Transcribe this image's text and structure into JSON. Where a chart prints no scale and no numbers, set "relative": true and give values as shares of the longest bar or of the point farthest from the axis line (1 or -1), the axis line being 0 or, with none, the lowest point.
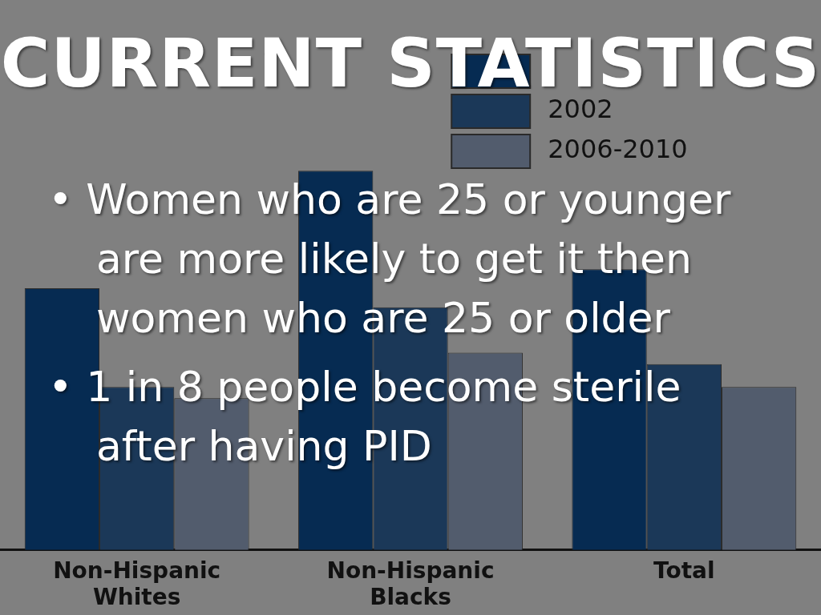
{
  "chart_data": {
    "type": "bar",
    "title": "CURRENT STATISTICS",
    "relative": true,
    "legend": "top right",
    "categories": [
      "Non-Hispanic Whites",
      "Non-Hispanic Blacks",
      "Total"
    ],
    "series": [
      {
        "color": "#062b52",
        "values": [
          0.69,
          1,
          0.74
        ]
      },
      {
        "name": "2002",
        "color": "#1b3858",
        "values": [
          0.43,
          0.64,
          0.49
        ]
      },
      {
        "name": "2006-2010",
        "color": "#525c6d",
        "values": [
          0.4,
          0.52,
          0.43
        ]
      }
    ],
    "annotations": [
      "• Women who are 25 or younger are more likely to get it then women who are 25 or older",
      "• 1 in 8 people become sterile after having PID"
    ]
  }
}
